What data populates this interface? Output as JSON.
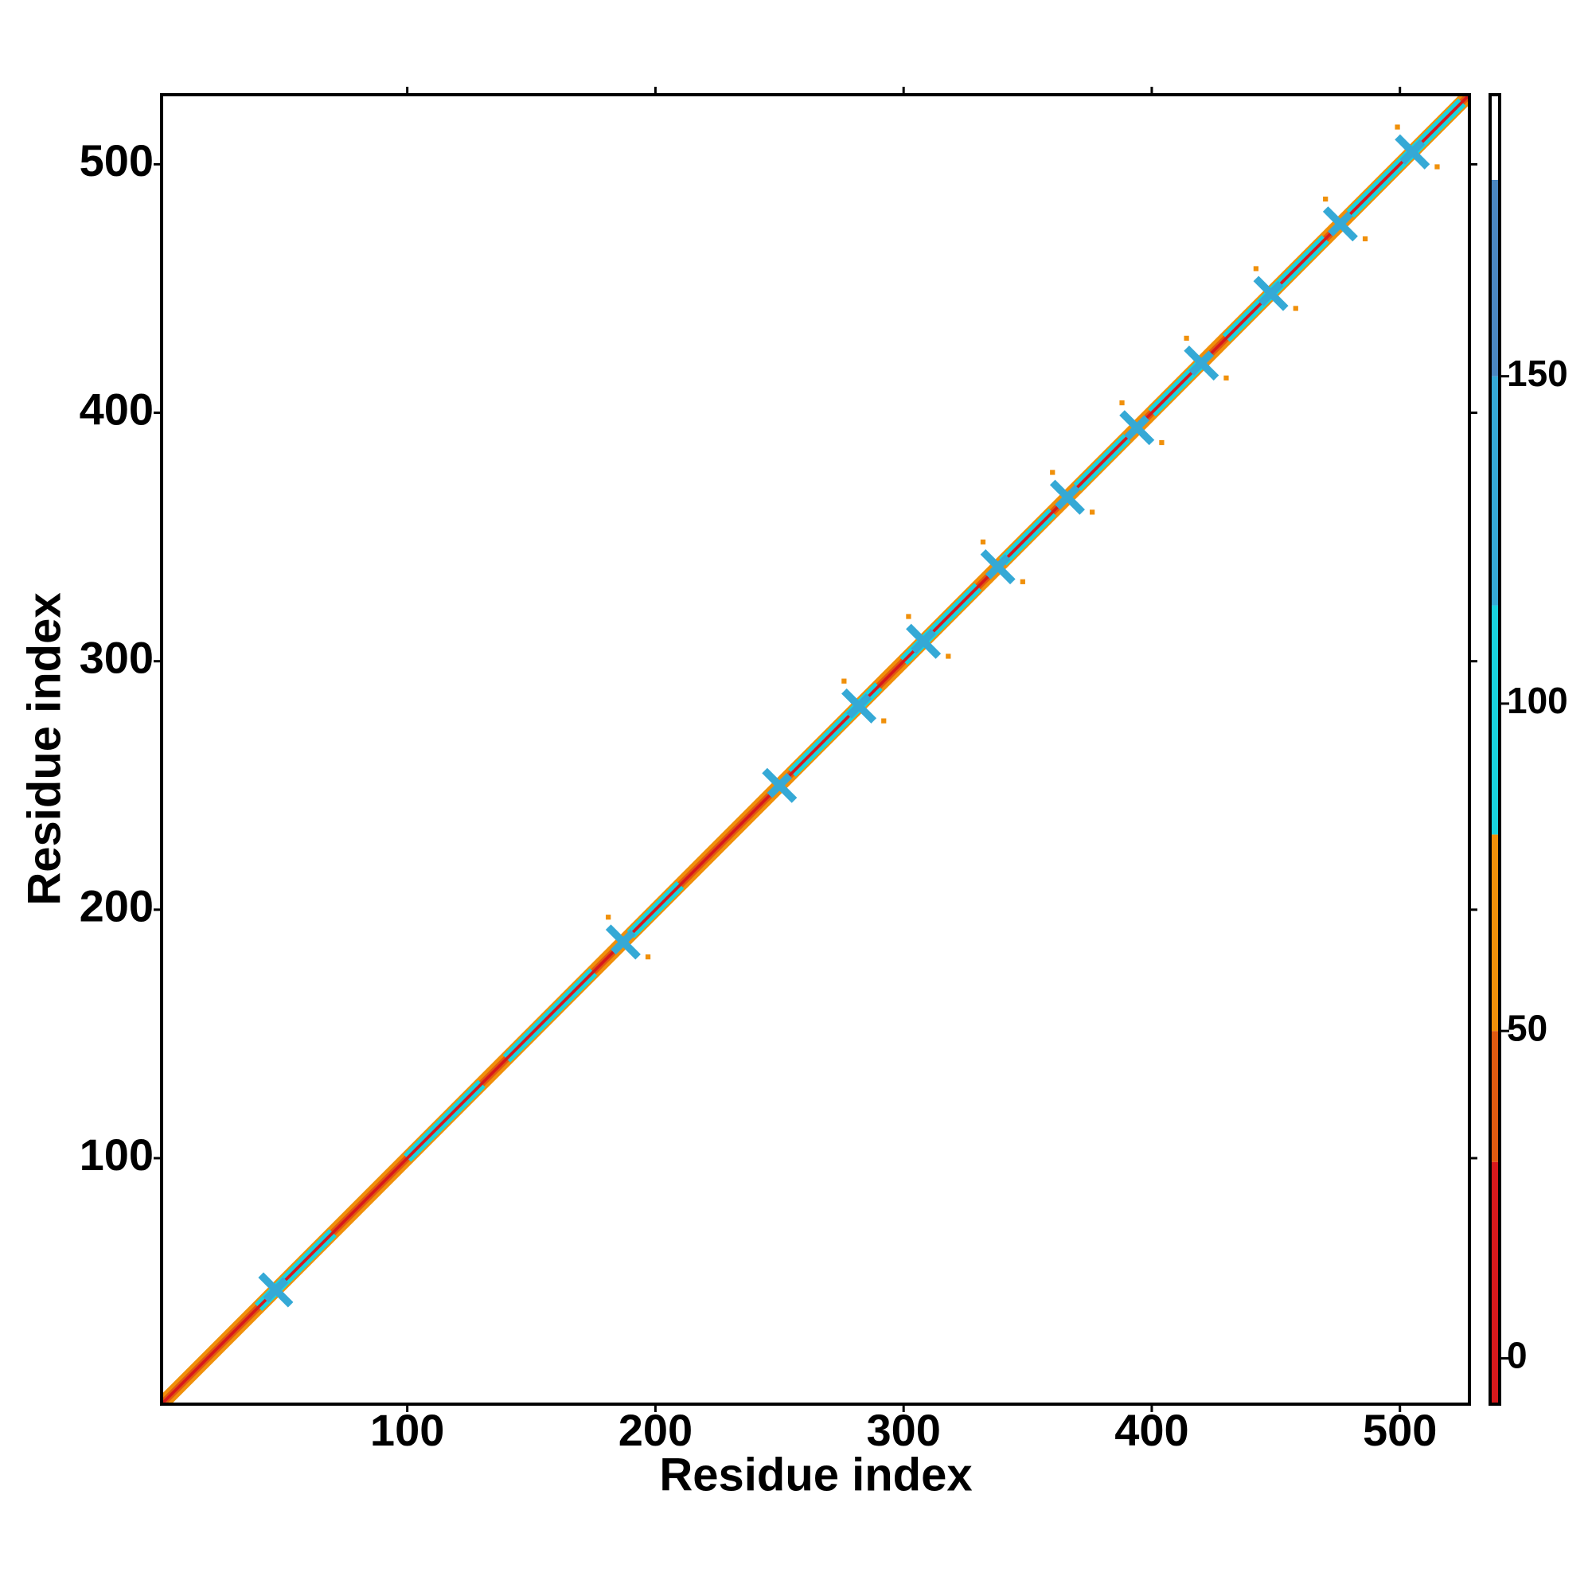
{
  "chart_data": {
    "type": "contact-map",
    "x_label": "Residue index",
    "y_label": "Residue index",
    "xlim": [
      1,
      528
    ],
    "ylim": [
      1,
      528
    ],
    "xticks": [
      100,
      200,
      300,
      400,
      500
    ],
    "yticks": [
      100,
      200,
      300,
      400,
      500
    ],
    "colorbar": {
      "zlim": [
        -7,
        193
      ],
      "zticks": [
        0,
        50,
        100,
        150
      ],
      "breaks": [
        -7,
        30,
        50,
        80,
        115,
        150,
        180,
        193
      ],
      "colors": [
        "#d7191c",
        "#e05a10",
        "#f0900a",
        "#19d3df",
        "#35a9d6",
        "#4a86c0",
        "#ffffff"
      ]
    },
    "bands": [
      {
        "from": 1,
        "to": 528,
        "offset": 4,
        "value": 60
      },
      {
        "from": 1,
        "to": 528,
        "offset": 2,
        "value": 40
      },
      {
        "from": 40,
        "to": 70,
        "offset": 3,
        "value": 100
      },
      {
        "from": 100,
        "to": 130,
        "offset": 3,
        "value": 100
      },
      {
        "from": 140,
        "to": 175,
        "offset": 3,
        "value": 100
      },
      {
        "from": 190,
        "to": 210,
        "offset": 3,
        "value": 100
      },
      {
        "from": 255,
        "to": 290,
        "offset": 3,
        "value": 100
      },
      {
        "from": 300,
        "to": 330,
        "offset": 3,
        "value": 100
      },
      {
        "from": 340,
        "to": 360,
        "offset": 3,
        "value": 100
      },
      {
        "from": 370,
        "to": 390,
        "offset": 3,
        "value": 100
      },
      {
        "from": 400,
        "to": 420,
        "offset": 3,
        "value": 100
      },
      {
        "from": 430,
        "to": 470,
        "offset": 3,
        "value": 100
      },
      {
        "from": 480,
        "to": 525,
        "offset": 3,
        "value": 100
      },
      {
        "from": 1,
        "to": 528,
        "offset": 0,
        "value": 0
      }
    ],
    "motifs": {
      "x": [
        47,
        187,
        250,
        282,
        308,
        338,
        366,
        394,
        420,
        448,
        476,
        505
      ],
      "values": [
        120,
        130,
        130,
        130,
        130,
        130,
        130,
        130,
        130,
        130,
        130,
        130
      ]
    },
    "flanks": {
      "x": [
        181,
        197,
        276,
        292,
        302,
        318,
        332,
        348,
        360,
        376,
        388,
        404,
        414,
        430,
        442,
        458,
        470,
        486,
        499,
        515
      ],
      "y": [
        197,
        181,
        292,
        276,
        318,
        302,
        348,
        332,
        376,
        360,
        404,
        388,
        430,
        414,
        458,
        442,
        486,
        470,
        515,
        499
      ],
      "values": [
        55,
        55,
        55,
        55,
        55,
        55,
        55,
        55,
        55,
        55,
        55,
        55,
        55,
        55,
        55,
        55,
        55,
        55,
        55,
        55
      ]
    }
  }
}
